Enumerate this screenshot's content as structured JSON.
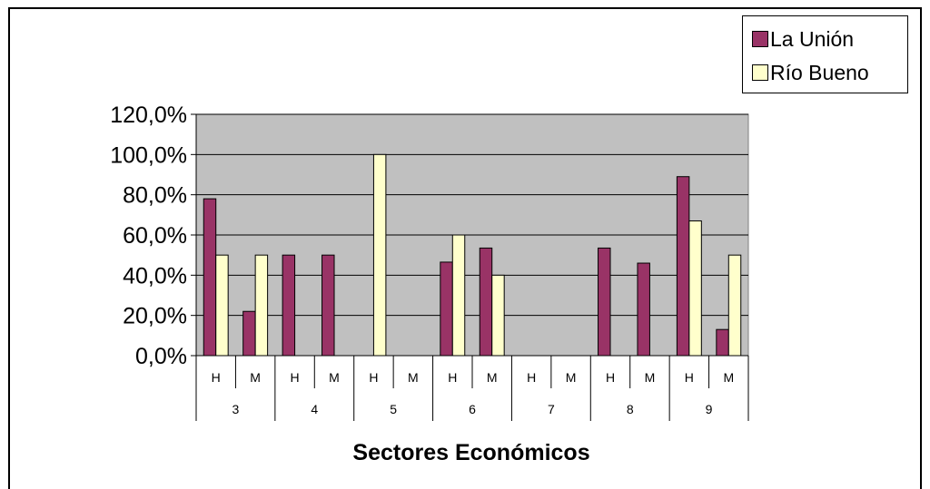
{
  "chart_data": {
    "type": "bar",
    "xlabel": "Sectores Económicos",
    "ylabel": "",
    "ylim": [
      0,
      120
    ],
    "y_ticks": [
      "0,0%",
      "20,0%",
      "40,0%",
      "60,0%",
      "80,0%",
      "100,0%",
      "120,0%"
    ],
    "grid": true,
    "legend_position": "top-right",
    "categories": [
      "H",
      "M",
      "H",
      "M",
      "H",
      "M",
      "H",
      "M",
      "H",
      "M",
      "H",
      "M",
      "H",
      "M"
    ],
    "groups": [
      "3",
      "4",
      "5",
      "6",
      "7",
      "8",
      "9"
    ],
    "series": [
      {
        "name": "La Unión",
        "color": "#993366",
        "values": [
          78,
          22,
          50,
          50,
          0,
          0,
          46.5,
          53.5,
          0,
          0,
          53.5,
          46,
          89,
          13
        ]
      },
      {
        "name": "Río Bueno",
        "color": "#ffffcc",
        "values": [
          50,
          50,
          0,
          0,
          100,
          0,
          60,
          40,
          0,
          0,
          0,
          0,
          67,
          50
        ]
      }
    ],
    "plot_background": "#c0c0c0"
  }
}
